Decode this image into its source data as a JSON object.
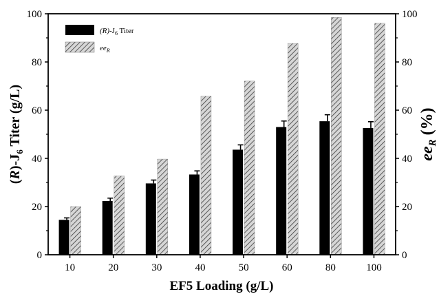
{
  "chart_data": {
    "type": "bar",
    "categories": [
      "10",
      "20",
      "30",
      "40",
      "50",
      "60",
      "80",
      "100"
    ],
    "xlabel": "EF5 Loading (g/L)",
    "ylabel_left": {
      "prefix": "(",
      "italic": "R",
      "mid": ")-J",
      "sub": "6",
      "suffix": " Titer (g/L)"
    },
    "ylabel_right": {
      "italic": "ee",
      "sub": "R",
      "suffix": " (%)"
    },
    "ylim_left": [
      0,
      100
    ],
    "ylim_right": [
      0,
      100
    ],
    "yticks_left": [
      0,
      20,
      40,
      60,
      80,
      100
    ],
    "yticks_right": [
      0,
      20,
      40,
      60,
      80,
      100
    ],
    "legend_position": "top-left",
    "grid": false,
    "series": [
      {
        "name": "(R)-J6 Titer",
        "legend": {
          "italic": "(R)",
          "mid": "-J",
          "sub": "6",
          "suffix": " Titer"
        },
        "axis": "left",
        "style": "solid-black",
        "values": [
          14.5,
          22.3,
          29.6,
          33.3,
          43.6,
          53.0,
          55.4,
          52.6
        ],
        "errors": [
          0.8,
          1.2,
          1.4,
          1.5,
          2.0,
          2.5,
          2.7,
          2.6
        ]
      },
      {
        "name": "eeR",
        "legend": {
          "italic": "ee",
          "sub": "R"
        },
        "axis": "right",
        "style": "hatched",
        "values": [
          20.0,
          32.7,
          39.7,
          65.8,
          72.1,
          87.7,
          98.5,
          96.1
        ]
      }
    ],
    "colors": {
      "solid": "#000000",
      "hatch_fill": "#d6d6d6",
      "hatch_line": "#3a3a3a"
    }
  }
}
